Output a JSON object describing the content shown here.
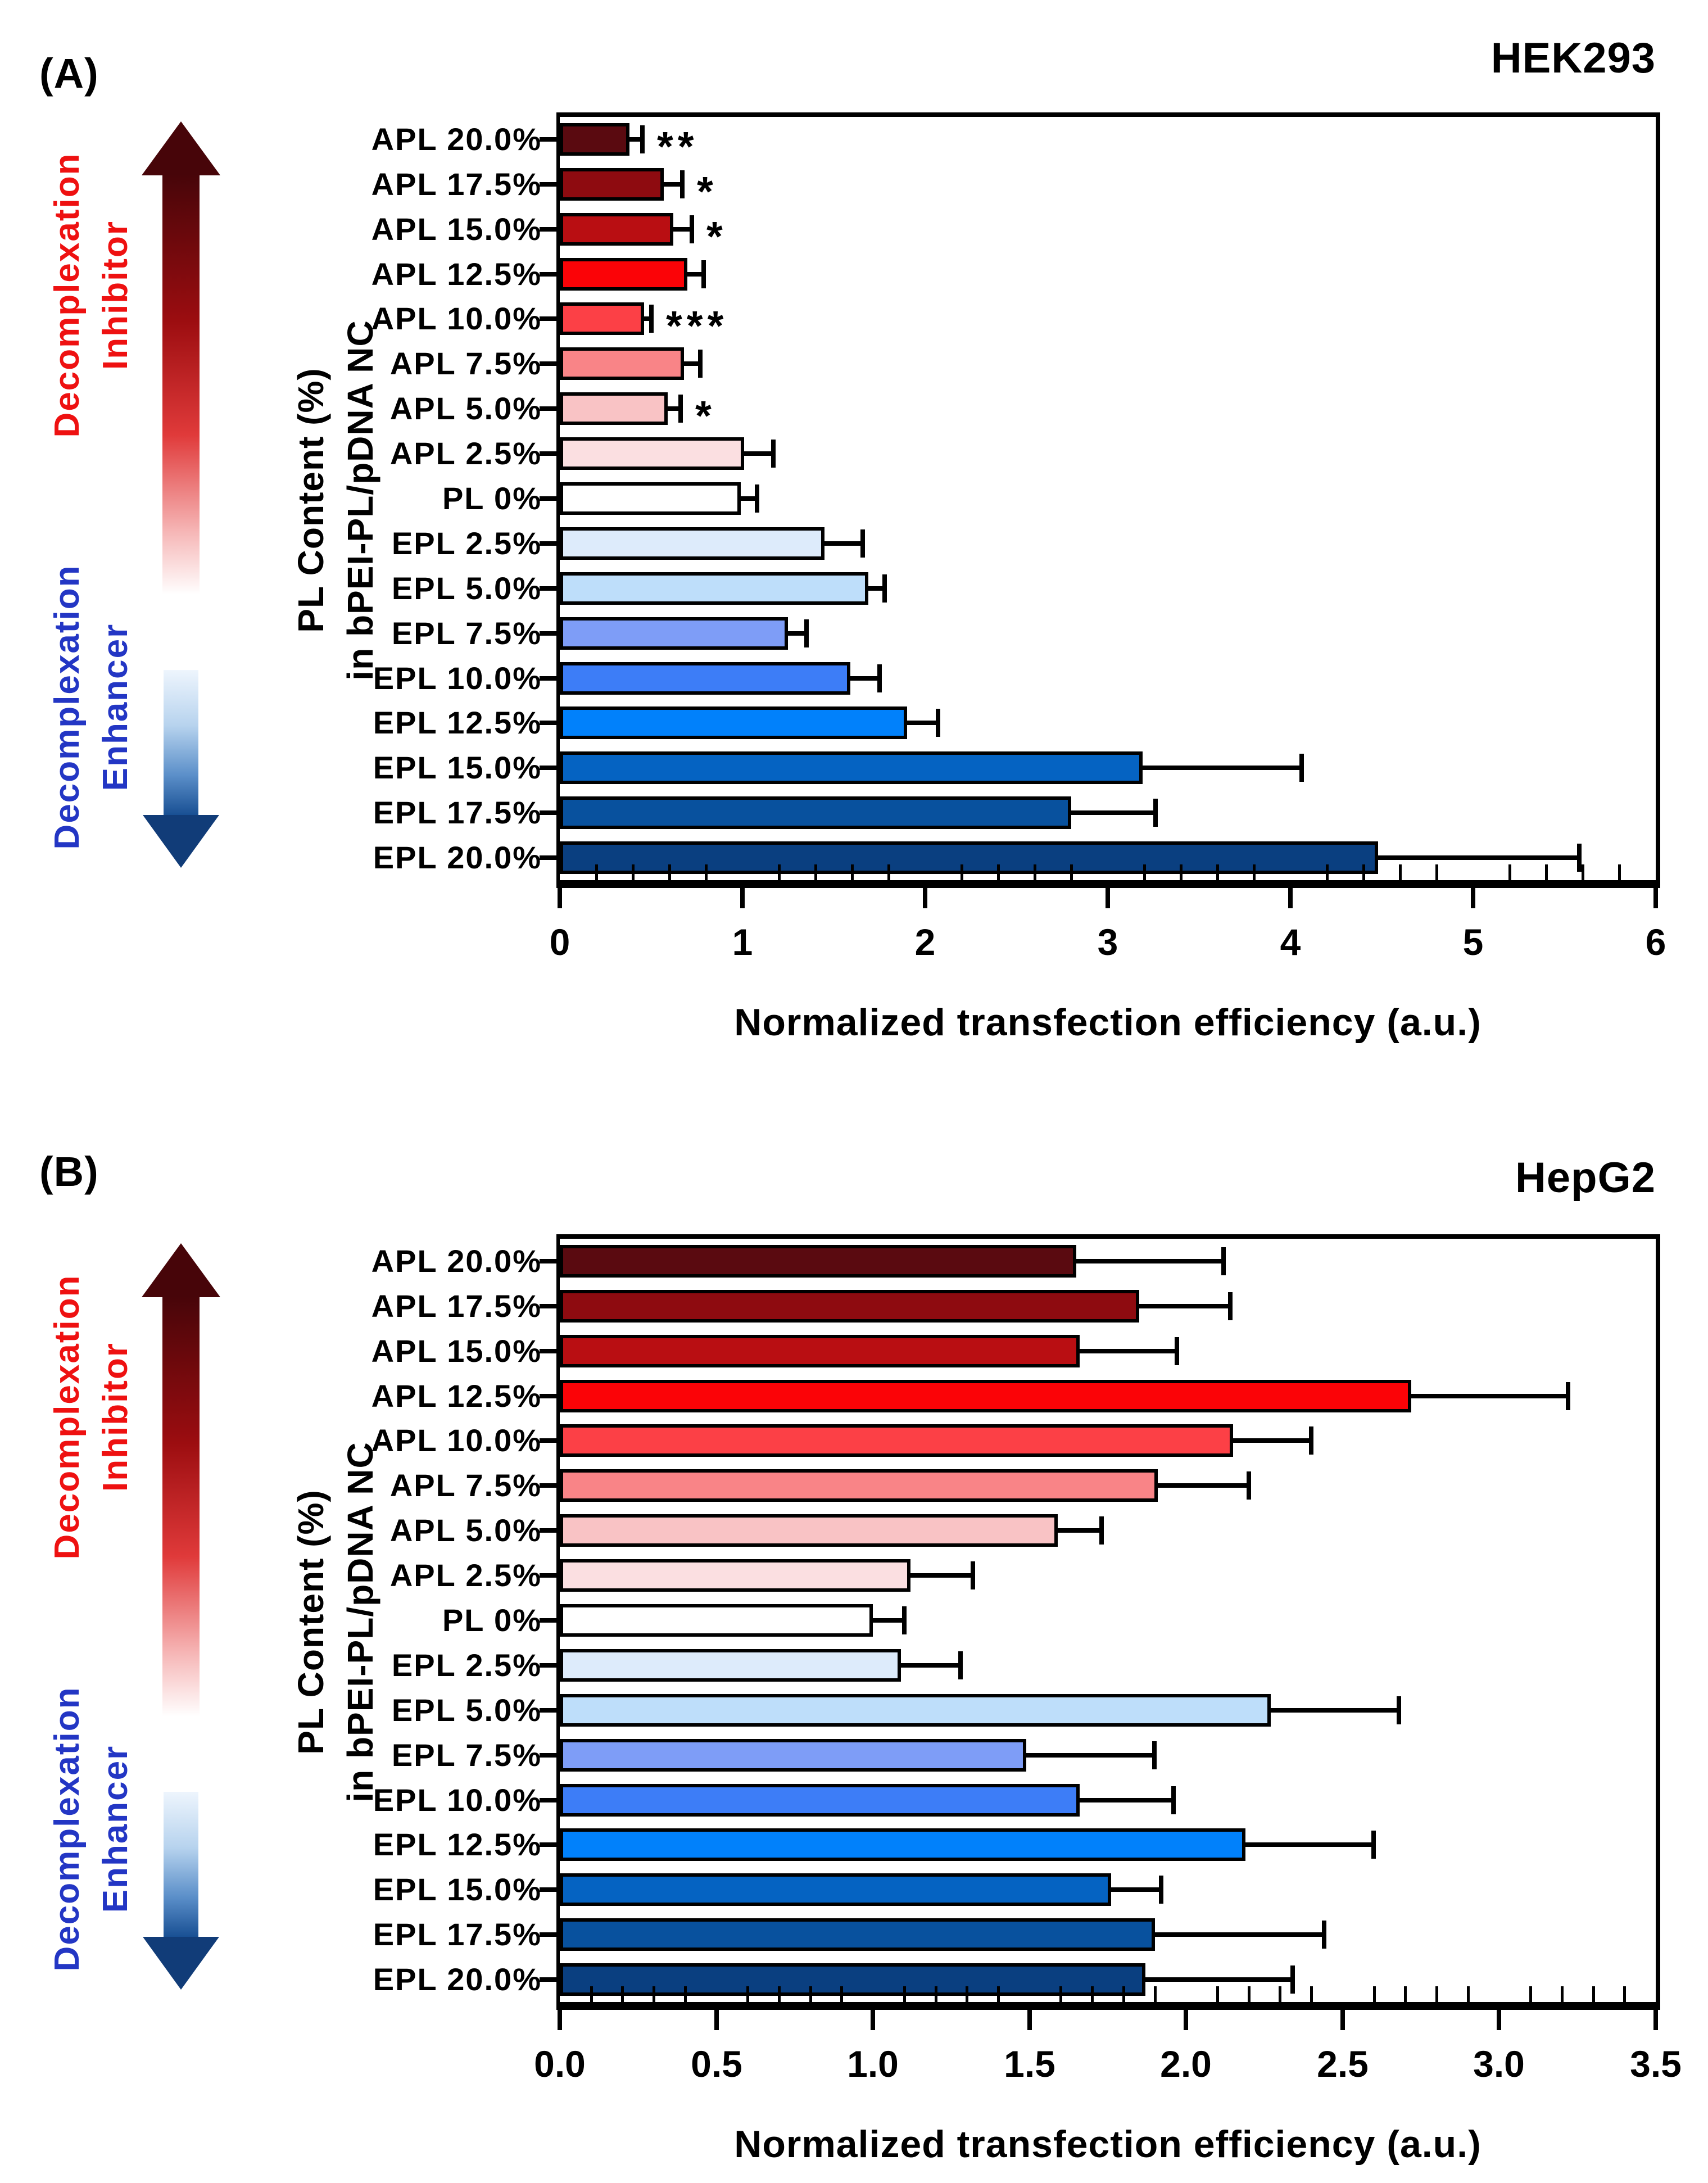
{
  "figure": {
    "xlabel": "Normalized transfection efficiency (a.u.)",
    "ylabel_line1": "PL Content (%)",
    "ylabel_line2": "in bPEI-PL/pDNA NC",
    "inhibitor_label_line1": "Decomplexation",
    "inhibitor_label_line2": "Inhibitor",
    "enhancer_label_line1": "Decomplexation",
    "enhancer_label_line2": "Enhancer",
    "colors": {
      "inhibitor_text": "#ee1111",
      "enhancer_text": "#2336c4",
      "bar_outline": "#000000",
      "inhibitor_arrow_dark": "#470509",
      "enhancer_arrow_dark": "#113c78"
    }
  },
  "chart_data": [
    {
      "type": "bar",
      "orientation": "horizontal",
      "panel_label": "(A)",
      "title": "HEK293",
      "xlabel": "Normalized transfection efficiency (a.u.)",
      "ylabel": "PL Content (%) in bPEI-PL/pDNA NC",
      "xlim": [
        0,
        6
      ],
      "xticks": [
        0,
        1,
        2,
        3,
        4,
        5,
        6
      ],
      "xtick_labels": [
        "0",
        "1",
        "2",
        "3",
        "4",
        "5",
        "6"
      ],
      "minor_tick_step": 0.2,
      "grid": false,
      "legend": false,
      "categories": [
        "APL 20.0%",
        "APL 17.5%",
        "APL 15.0%",
        "APL 12.5%",
        "APL 10.0%",
        "APL 7.5%",
        "APL 5.0%",
        "APL 2.5%",
        "PL 0%",
        "EPL 2.5%",
        "EPL 5.0%",
        "EPL 7.5%",
        "EPL 10.0%",
        "EPL 12.5%",
        "EPL 15.0%",
        "EPL 17.5%",
        "EPL 20.0%"
      ],
      "values": [
        0.38,
        0.57,
        0.62,
        0.7,
        0.46,
        0.68,
        0.59,
        1.01,
        0.99,
        1.45,
        1.69,
        1.25,
        1.59,
        1.9,
        3.19,
        2.8,
        4.48
      ],
      "errors_upper": [
        0.07,
        0.1,
        0.1,
        0.09,
        0.04,
        0.09,
        0.07,
        0.16,
        0.09,
        0.21,
        0.09,
        0.1,
        0.16,
        0.17,
        0.87,
        0.46,
        1.1
      ],
      "significance": [
        "**",
        "*",
        "*",
        "",
        "***",
        "",
        "*",
        "",
        "",
        "",
        "",
        "",
        "",
        "",
        "",
        "",
        ""
      ],
      "bar_colors": [
        "#5a0a10",
        "#8e0b10",
        "#b90e12",
        "#fb0307",
        "#fc4046",
        "#f98487",
        "#f9c3c5",
        "#fbdfe1",
        "#ffffff",
        "#ddebfb",
        "#bedefa",
        "#7e9df7",
        "#3d7df7",
        "#0181fb",
        "#0563c2",
        "#08519e",
        "#0a3f80"
      ]
    },
    {
      "type": "bar",
      "orientation": "horizontal",
      "panel_label": "(B)",
      "title": "HepG2",
      "xlabel": "Normalized transfection efficiency (a.u.)",
      "ylabel": "PL Content (%) in bPEI-PL/pDNA NC",
      "xlim": [
        0,
        3.5
      ],
      "xticks": [
        0,
        0.5,
        1,
        1.5,
        2,
        2.5,
        3,
        3.5
      ],
      "xtick_labels": [
        "0.0",
        "0.5",
        "1.0",
        "1.5",
        "2.0",
        "2.5",
        "3.0",
        "3.5"
      ],
      "minor_tick_step": 0.1,
      "grid": false,
      "legend": false,
      "categories": [
        "APL 20.0%",
        "APL 17.5%",
        "APL 15.0%",
        "APL 12.5%",
        "APL 10.0%",
        "APL 7.5%",
        "APL 5.0%",
        "APL 2.5%",
        "PL 0%",
        "EPL 2.5%",
        "EPL 5.0%",
        "EPL 7.5%",
        "EPL 10.0%",
        "EPL 12.5%",
        "EPL 15.0%",
        "EPL 17.5%",
        "EPL 20.0%"
      ],
      "values": [
        1.65,
        1.85,
        1.66,
        2.72,
        2.15,
        1.91,
        1.59,
        1.12,
        1.0,
        1.09,
        2.27,
        1.49,
        1.66,
        2.19,
        1.76,
        1.9,
        1.87
      ],
      "errors_upper": [
        0.47,
        0.29,
        0.31,
        0.5,
        0.25,
        0.29,
        0.14,
        0.2,
        0.1,
        0.19,
        0.41,
        0.41,
        0.3,
        0.41,
        0.16,
        0.54,
        0.47
      ],
      "significance": [
        "",
        "",
        "",
        "",
        "",
        "",
        "",
        "",
        "",
        "",
        "",
        "",
        "",
        "",
        "",
        "",
        ""
      ],
      "bar_colors": [
        "#5a0a10",
        "#8e0b10",
        "#b90e12",
        "#fb0307",
        "#fc4046",
        "#f98487",
        "#f9c3c5",
        "#fbdfe1",
        "#ffffff",
        "#ddebfb",
        "#bedefa",
        "#7e9df7",
        "#3d7df7",
        "#0181fb",
        "#0563c2",
        "#08519e",
        "#0a3f80"
      ]
    }
  ]
}
